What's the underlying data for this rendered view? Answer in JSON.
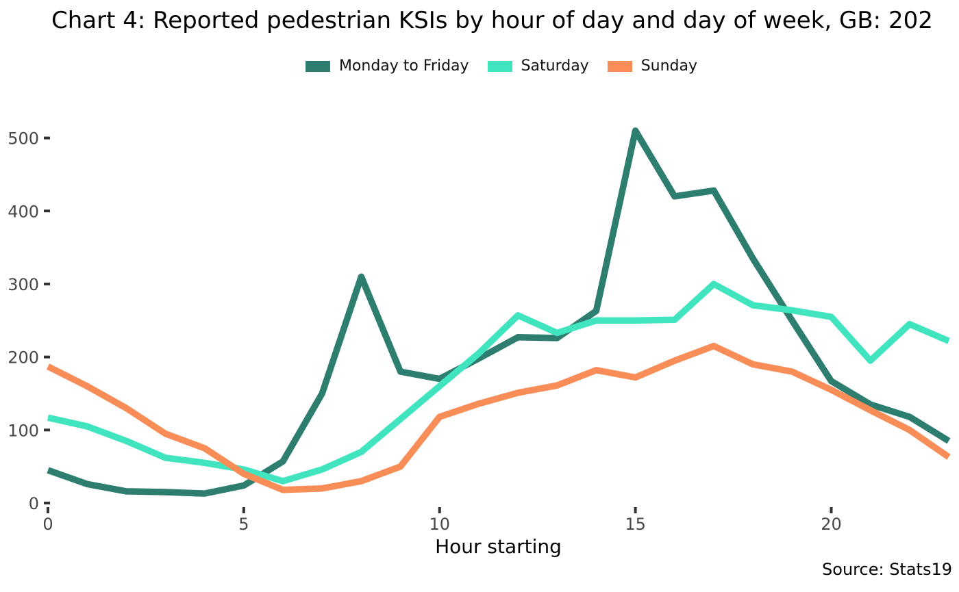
{
  "footer": {
    "source": "Source: Stats19"
  },
  "chart_data": {
    "type": "line",
    "title": "Chart 4: Reported pedestrian KSIs by hour of day and day of week, GB: 202",
    "xlabel": "Hour starting",
    "ylabel": "",
    "x": [
      0,
      1,
      2,
      3,
      4,
      5,
      6,
      7,
      8,
      9,
      10,
      11,
      12,
      13,
      14,
      15,
      16,
      17,
      18,
      19,
      20,
      21,
      22,
      23
    ],
    "xlim": [
      0,
      23
    ],
    "ylim": [
      0,
      500
    ],
    "x_ticks": [
      0,
      5,
      10,
      15,
      20
    ],
    "y_ticks": [
      0,
      100,
      200,
      300,
      400,
      500
    ],
    "grid": false,
    "legend_position": "top",
    "axis_text_color": "#474747",
    "tick_mark_color": "#333333",
    "series": [
      {
        "name": "Monday to Friday",
        "color": "#2e7e6f",
        "values": [
          45,
          26,
          16,
          15,
          13,
          24,
          57,
          150,
          310,
          180,
          170,
          198,
          227,
          226,
          263,
          510,
          420,
          428,
          335,
          250,
          167,
          135,
          118,
          85
        ]
      },
      {
        "name": "Saturday",
        "color": "#40e5c0",
        "values": [
          117,
          105,
          85,
          62,
          55,
          46,
          30,
          46,
          70,
          115,
          160,
          205,
          257,
          233,
          250,
          250,
          251,
          300,
          271,
          264,
          255,
          195,
          245,
          222
        ]
      },
      {
        "name": "Sunday",
        "color": "#f98d58",
        "values": [
          187,
          160,
          130,
          95,
          75,
          40,
          18,
          20,
          30,
          50,
          118,
          136,
          151,
          161,
          182,
          172,
          195,
          215,
          190,
          180,
          155,
          127,
          100,
          63
        ]
      }
    ]
  }
}
